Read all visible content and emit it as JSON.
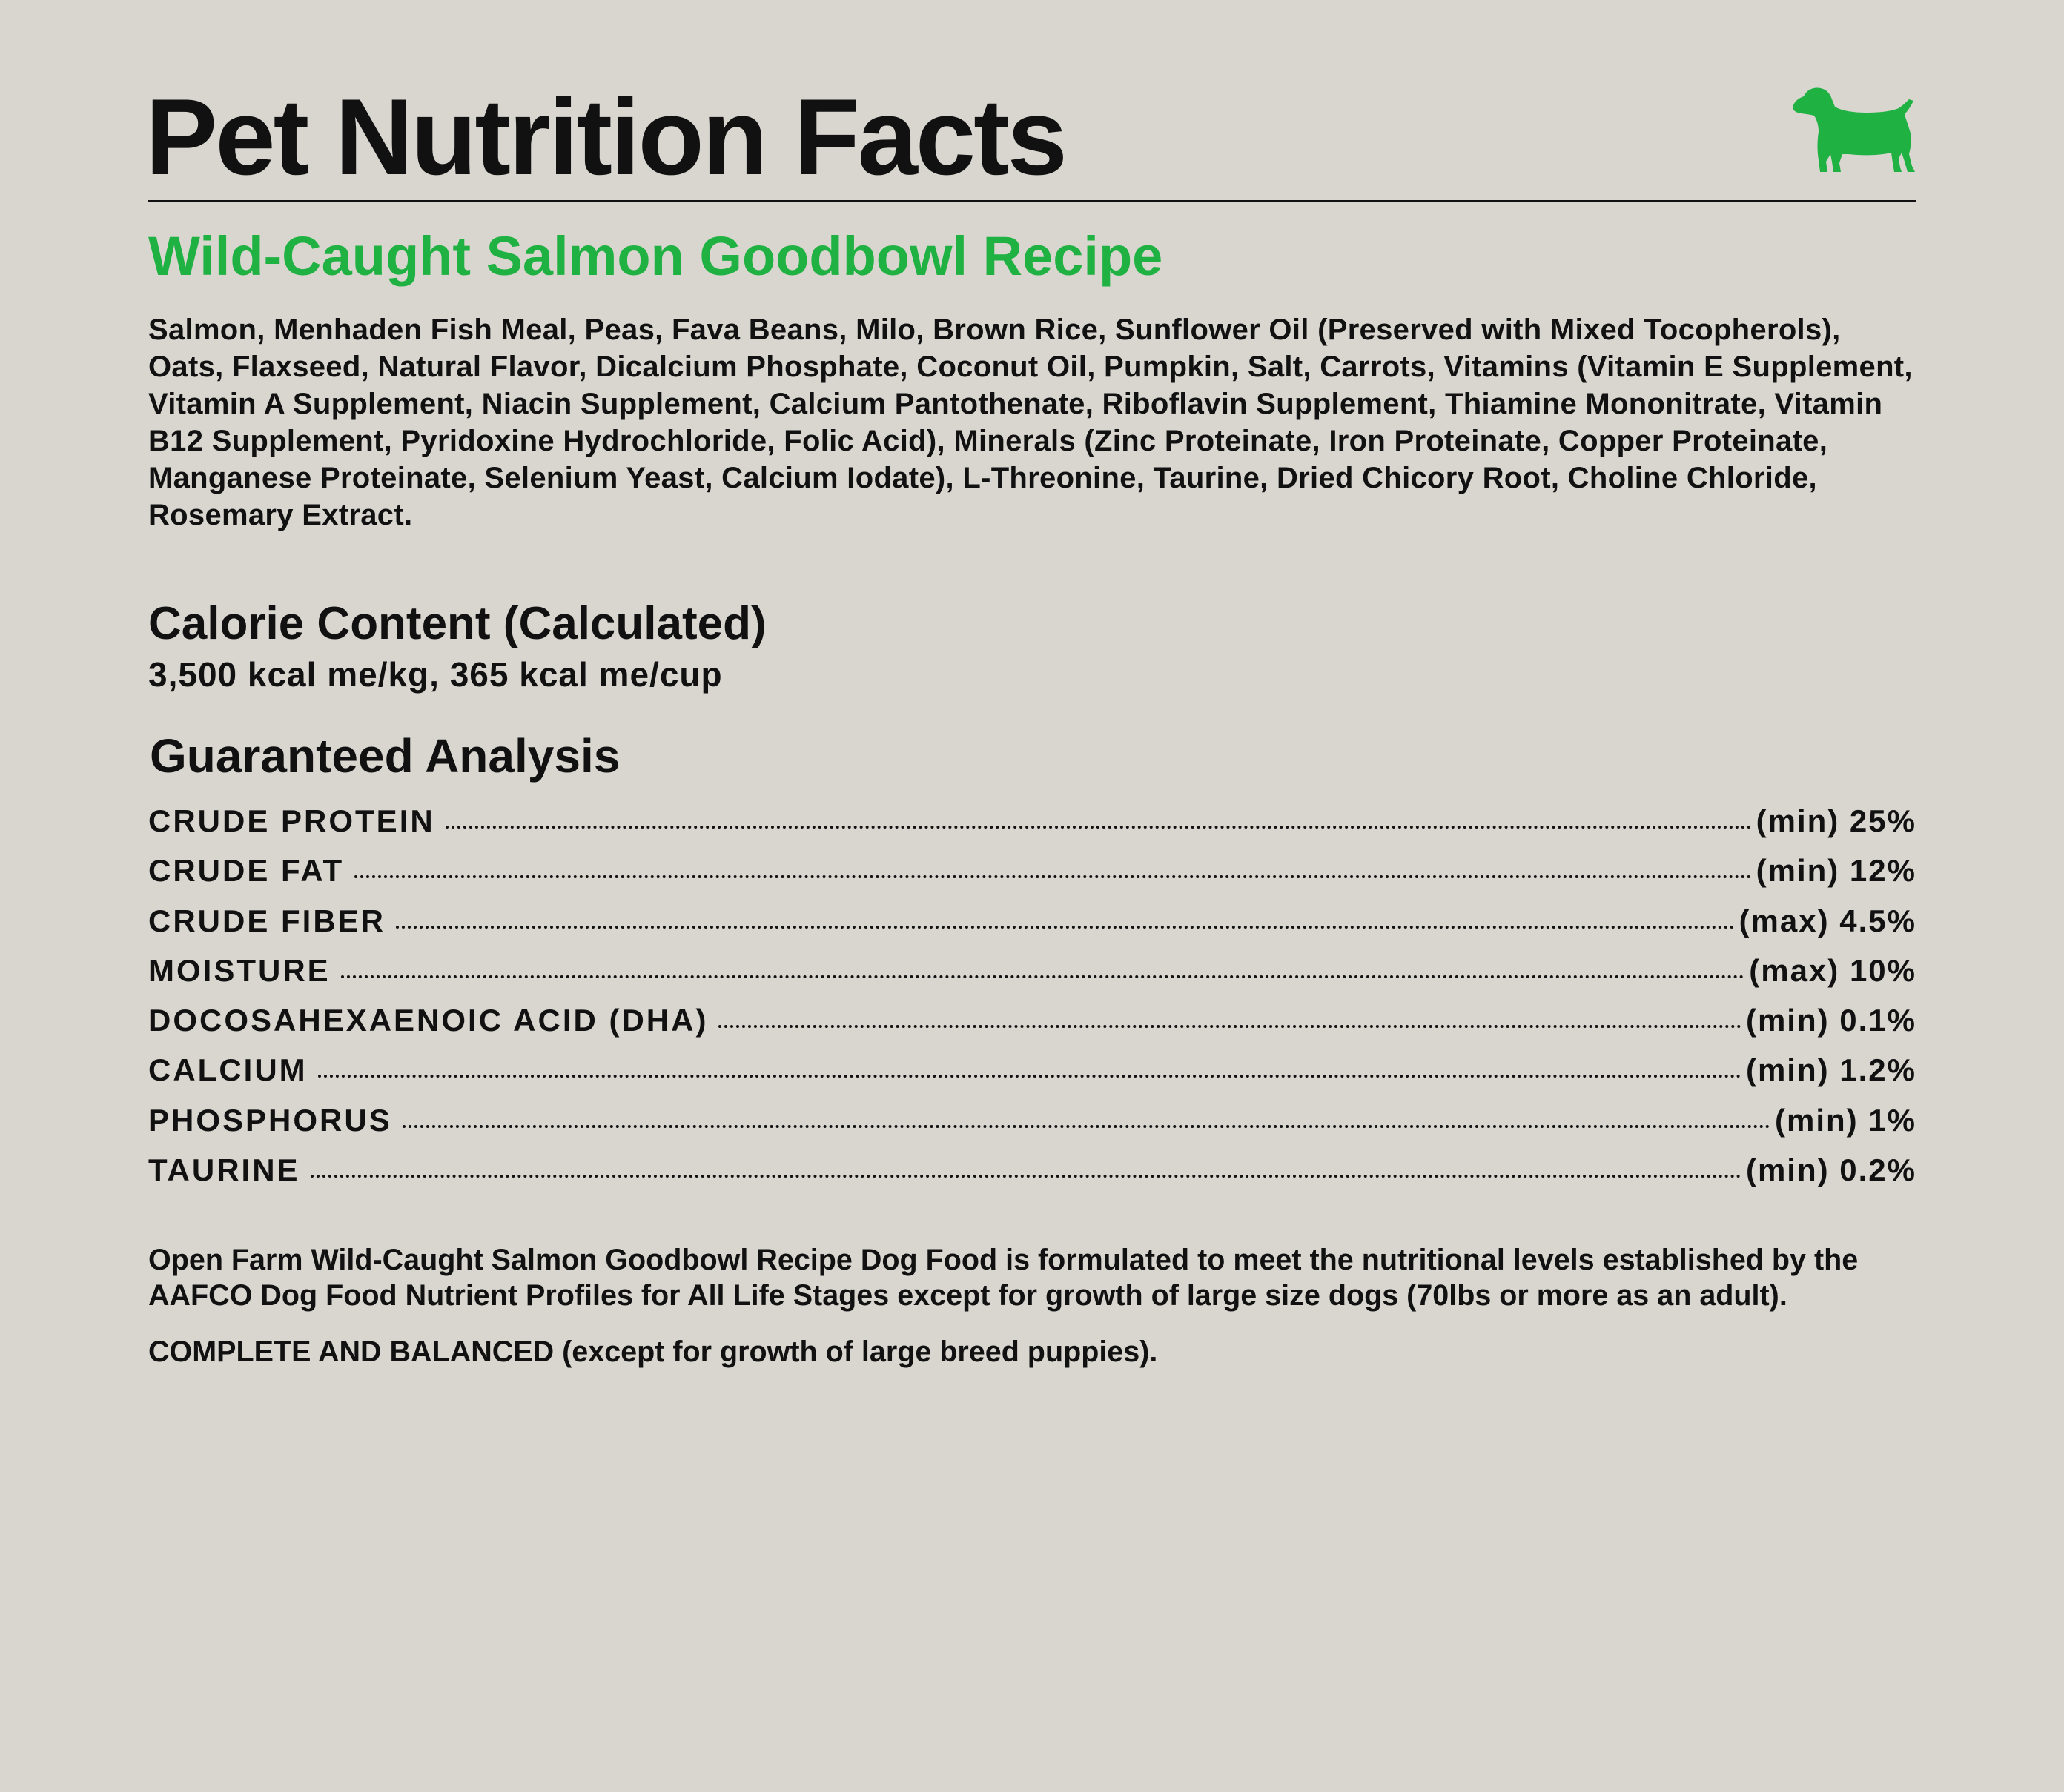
{
  "title": "Pet Nutrition Facts",
  "logo": {
    "icon": "dog-icon",
    "color": "#1fb141"
  },
  "recipe_name": "Wild-Caught Salmon Goodbowl Recipe",
  "ingredients": "Salmon, Menhaden Fish Meal, Peas, Fava Beans, Milo, Brown Rice, Sunflower Oil (Preserved with Mixed Tocopherols), Oats, Flaxseed, Natural Flavor, Dicalcium Phosphate, Coconut Oil, Pumpkin, Salt, Carrots, Vitamins (Vitamin E Supplement, Vitamin A Supplement, Niacin Supplement, Calcium Pantothenate, Riboflavin Supplement, Thiamine Mononitrate, Vitamin B12 Supplement, Pyridoxine Hydrochloride, Folic Acid), Minerals (Zinc Proteinate, Iron Proteinate, Copper Proteinate, Manganese Proteinate, Selenium Yeast, Calcium Iodate), L-Threonine, Taurine, Dried Chicory Root, Choline Chloride, Rosemary Extract.",
  "calorie": {
    "heading": "Calorie Content (Calculated)",
    "value": "3,500 kcal me/kg, 365 kcal me/cup"
  },
  "guaranteed_analysis": {
    "heading": "Guaranteed Analysis",
    "rows": [
      {
        "name": "CRUDE PROTEIN",
        "value": "(min) 25%"
      },
      {
        "name": "CRUDE FAT",
        "value": "(min) 12%"
      },
      {
        "name": "CRUDE FIBER",
        "value": "(max) 4.5%"
      },
      {
        "name": "MOISTURE",
        "value": "(max) 10%"
      },
      {
        "name": "DOCOSAHEXAENOIC ACID (DHA)",
        "value": "(min) 0.1%"
      },
      {
        "name": "CALCIUM",
        "value": "(min) 1.2%"
      },
      {
        "name": "PHOSPHORUS",
        "value": "(min) 1%"
      },
      {
        "name": "TAURINE",
        "value": "(min) 0.2%"
      }
    ]
  },
  "aafco_statement": "Open Farm Wild-Caught Salmon Goodbowl Recipe Dog Food is formulated to meet the nutritional levels established by the AAFCO Dog Food Nutrient Profiles for All Life Stages except for growth of large size dogs (70lbs or more as an adult).",
  "complete_statement": "COMPLETE AND BALANCED (except for growth of large breed puppies).",
  "colors": {
    "background": "#d9d6d0",
    "text": "#111111",
    "accent": "#1fb141"
  }
}
